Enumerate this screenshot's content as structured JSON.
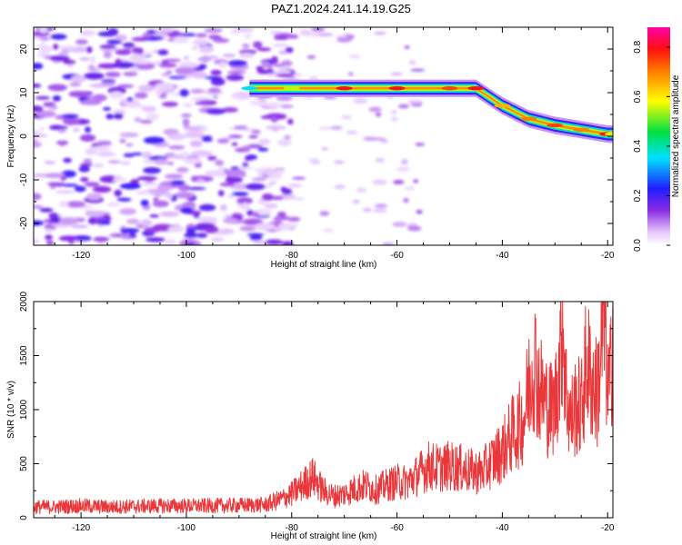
{
  "title": "PAZ1.2024.241.14.19.G25",
  "chart_data": [
    {
      "type": "heatmap",
      "xlabel": "Height of straight line (km)",
      "ylabel": "Frequency (Hz)",
      "xlim": [
        -129,
        -19
      ],
      "ylim": [
        -25,
        25
      ],
      "xticks": [
        -120,
        -100,
        -80,
        -60,
        -40,
        -20
      ],
      "xtick_labels": [
        "-120",
        "-100",
        "-80",
        "-60",
        "-40",
        "-20"
      ],
      "yticks": [
        -20,
        -10,
        0,
        10,
        20
      ],
      "ytick_labels": [
        "-20",
        "-10",
        "0",
        "10",
        "20"
      ],
      "colorbar": {
        "label": "Normalized spectral amplitude",
        "range": [
          0,
          0.88
        ],
        "ticks": [
          0.0,
          0.2,
          0.4,
          0.6,
          0.8
        ],
        "tick_labels": [
          "0.0",
          "0.2",
          "0.4",
          "0.6",
          "0.8"
        ],
        "colormap": "rainbow (white-violet-blue-cyan-green-yellow-red-magenta)"
      },
      "ridge": {
        "x": [
          -88,
          -80,
          -70,
          -60,
          -50,
          -45,
          -40,
          -35,
          -30,
          -25,
          -20,
          -19
        ],
        "y": [
          11,
          11,
          11,
          11,
          11,
          11,
          7,
          4,
          2.5,
          1.5,
          0.5,
          0.5
        ],
        "amplitude": [
          0.35,
          0.55,
          0.8,
          0.8,
          0.75,
          0.8,
          0.65,
          0.7,
          0.75,
          0.7,
          0.8,
          0.6
        ]
      },
      "noise_region_x": [
        -129,
        -80
      ],
      "sparse_noise_x": [
        -80,
        -55
      ],
      "grid": false
    },
    {
      "type": "line",
      "xlabel": "Height of straight line (km)",
      "ylabel": "SNR (10 * v/v)",
      "xlim": [
        -129,
        -19
      ],
      "ylim": [
        0,
        2000
      ],
      "xticks": [
        -120,
        -100,
        -80,
        -60,
        -40,
        -20
      ],
      "xtick_labels": [
        "-120",
        "-100",
        "-80",
        "-60",
        "-40",
        "-20"
      ],
      "yticks": [
        0,
        500,
        1000,
        1500,
        2000
      ],
      "ytick_labels": [
        "0",
        "500",
        "1000",
        "1500",
        "2000"
      ],
      "series": [
        {
          "color": "#e8383b",
          "x": [
            -129,
            -125,
            -120,
            -115,
            -110,
            -105,
            -100,
            -95,
            -90,
            -85,
            -82,
            -80,
            -78,
            -76,
            -74,
            -72,
            -70,
            -68,
            -66,
            -64,
            -62,
            -60,
            -58,
            -56,
            -54,
            -52,
            -50,
            -48,
            -46,
            -44,
            -42,
            -40,
            -38,
            -36,
            -35,
            -34,
            -33,
            -32,
            -31,
            -30,
            -29,
            -28.5,
            -28,
            -27,
            -26,
            -25,
            -24,
            -23,
            -22,
            -21,
            -20.5,
            -20,
            -19.5,
            -19
          ],
          "y": [
            100,
            100,
            110,
            100,
            105,
            110,
            110,
            110,
            115,
            120,
            170,
            220,
            300,
            380,
            250,
            200,
            220,
            270,
            300,
            260,
            300,
            330,
            330,
            400,
            480,
            460,
            480,
            460,
            430,
            420,
            520,
            620,
            780,
            900,
            1200,
            1500,
            1200,
            1100,
            1000,
            1050,
            1500,
            1900,
            1200,
            900,
            1050,
            1000,
            1450,
            1250,
            1150,
            1650,
            1850,
            1150,
            1250,
            1750
          ]
        }
      ],
      "grid": false
    }
  ]
}
